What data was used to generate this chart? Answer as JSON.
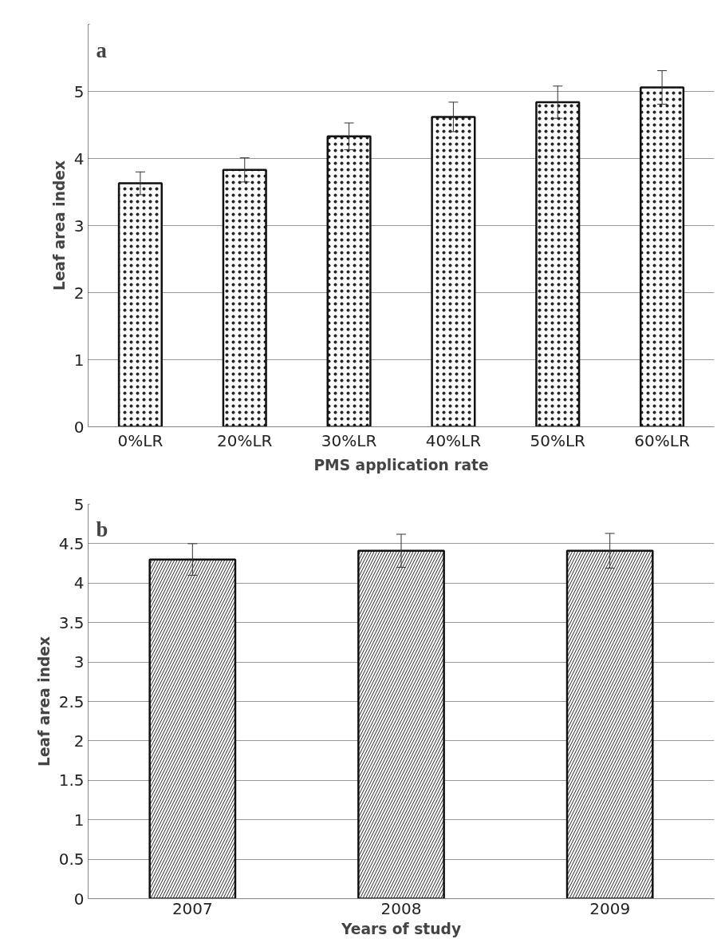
{
  "chart_data": [
    {
      "type": "bar",
      "annotations": [
        "a"
      ],
      "xlabel": "PMS application rate",
      "ylabel": "Leaf area index",
      "categories": [
        "0%LR",
        "20%LR",
        "30%LR",
        "40%LR",
        "50%LR",
        "60%LR"
      ],
      "values": [
        3.63,
        3.83,
        4.33,
        4.62,
        4.84,
        5.06
      ],
      "errors": [
        0.17,
        0.18,
        0.2,
        0.22,
        0.24,
        0.25
      ],
      "color": "#ffffff",
      "ylim": [
        0,
        6
      ],
      "yticks": [
        0,
        1,
        2,
        3,
        4,
        5,
        {
          "value": 6,
          "label": null
        }
      ],
      "grid": "y"
    },
    {
      "type": "bar",
      "annotations": [
        "b"
      ],
      "xlabel": "Years of study",
      "ylabel": "Leaf area index",
      "categories": [
        "2007",
        "2008",
        "2009"
      ],
      "values": [
        4.3,
        4.41,
        4.41
      ],
      "errors": [
        0.2,
        0.21,
        0.22
      ],
      "color": "#ffffff",
      "ylim": [
        0,
        5
      ],
      "yticks": [
        0,
        0.5,
        1,
        1.5,
        2,
        2.5,
        3,
        3.5,
        4,
        4.5,
        5
      ],
      "grid": "y"
    }
  ]
}
